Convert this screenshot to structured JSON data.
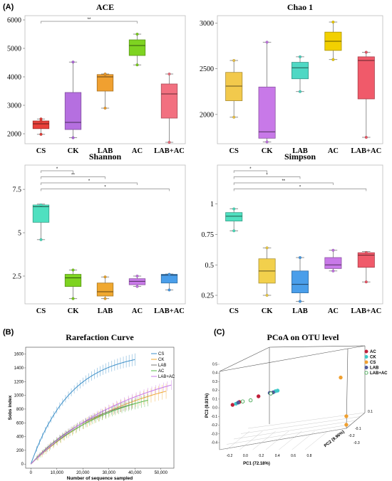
{
  "panel_labels": [
    "(A)",
    "(B)",
    "(C)"
  ],
  "box_categories": [
    "CS",
    "CK",
    "LAB",
    "AC",
    "LAB+AC"
  ],
  "box_colors": [
    "#e8403a",
    "#b56fe0",
    "#f0a030",
    "#7ed321",
    "#f27080"
  ],
  "chart_data": [
    {
      "type": "box",
      "title": "ACE",
      "categories": [
        "CS",
        "CK",
        "LAB",
        "AC",
        "LAB+AC"
      ],
      "colors": [
        "#e8403a",
        "#b56fe0",
        "#f0a030",
        "#7ed321",
        "#f27080"
      ],
      "ylim": [
        1650,
        6150
      ],
      "yticks": [
        2000,
        3000,
        4000,
        5000,
        6000
      ],
      "boxes": [
        {
          "min": 1980,
          "q1": 2180,
          "median": 2350,
          "q3": 2450,
          "max": 2520,
          "points": [
            1980,
            2450,
            2520
          ]
        },
        {
          "min": 1860,
          "q1": 2150,
          "median": 2400,
          "q3": 3450,
          "max": 4520,
          "points": [
            1860,
            4520
          ]
        },
        {
          "min": 2900,
          "q1": 3500,
          "median": 4000,
          "q3": 4080,
          "max": 4100,
          "points": [
            2900,
            4080,
            4100
          ]
        },
        {
          "min": 4420,
          "q1": 4750,
          "median": 5100,
          "q3": 5300,
          "max": 5500,
          "points": [
            4420,
            5500
          ]
        },
        {
          "min": 1700,
          "q1": 2550,
          "median": 3400,
          "q3": 3750,
          "max": 4100,
          "points": [
            1700,
            4100
          ]
        }
      ],
      "significance": [
        {
          "from": 0,
          "to": 3,
          "label": "**"
        }
      ]
    },
    {
      "type": "box",
      "title": "Chao 1",
      "categories": [
        "CS",
        "CK",
        "LAB",
        "AC",
        "LAB+AC"
      ],
      "colors": [
        "#f2c94c",
        "#c879e8",
        "#4fd8c4",
        "#f2d000",
        "#f05a6a"
      ],
      "ylim": [
        1680,
        3080
      ],
      "yticks": [
        2000,
        2500,
        3000
      ],
      "boxes": [
        {
          "min": 1970,
          "q1": 2150,
          "median": 2310,
          "q3": 2460,
          "max": 2590,
          "points": [
            1970,
            2590
          ]
        },
        {
          "min": 1700,
          "q1": 1740,
          "median": 1810,
          "q3": 2300,
          "max": 2790,
          "points": [
            1700,
            2790
          ]
        },
        {
          "min": 2250,
          "q1": 2390,
          "median": 2510,
          "q3": 2570,
          "max": 2630,
          "points": [
            2250,
            2630
          ]
        },
        {
          "min": 2600,
          "q1": 2700,
          "median": 2800,
          "q3": 2900,
          "max": 3010,
          "points": [
            2600,
            3010
          ]
        },
        {
          "min": 1750,
          "q1": 2170,
          "median": 2590,
          "q3": 2630,
          "max": 2680,
          "points": [
            1750,
            2680
          ]
        }
      ],
      "significance": []
    },
    {
      "type": "box",
      "title": "Shannon",
      "categories": [
        "CS",
        "CK",
        "LAB",
        "AC",
        "LAB+AC"
      ],
      "colors": [
        "#4fe0c0",
        "#7ed321",
        "#f0a830",
        "#c879e8",
        "#4a9eea"
      ],
      "ylim": [
        0.9,
        8.9
      ],
      "yticks": [
        2.5,
        5,
        7.5
      ],
      "ytick_labels": [
        "2.5",
        "5",
        "7.5"
      ],
      "boxes": [
        {
          "min": 4.6,
          "q1": 5.6,
          "median": 6.5,
          "q3": 6.6,
          "max": 6.65,
          "points": [
            4.6,
            6.6
          ]
        },
        {
          "min": 1.2,
          "q1": 1.9,
          "median": 2.4,
          "q3": 2.6,
          "max": 2.85,
          "points": [
            1.2,
            2.85
          ]
        },
        {
          "min": 1.2,
          "q1": 1.35,
          "median": 1.6,
          "q3": 2.1,
          "max": 2.45,
          "points": [
            1.2,
            2.45
          ]
        },
        {
          "min": 1.9,
          "q1": 2.0,
          "median": 2.2,
          "q3": 2.35,
          "max": 2.5,
          "points": [
            1.9,
            2.5
          ]
        },
        {
          "min": 1.7,
          "q1": 2.1,
          "median": 2.55,
          "q3": 2.6,
          "max": 2.62,
          "points": [
            1.7,
            2.6
          ]
        }
      ],
      "significance": [
        {
          "from": 0,
          "to": 1,
          "label": "*"
        },
        {
          "from": 0,
          "to": 2,
          "label": "**"
        },
        {
          "from": 0,
          "to": 3,
          "label": "*"
        },
        {
          "from": 0,
          "to": 4,
          "label": "*"
        }
      ]
    },
    {
      "type": "box",
      "title": "Simpson",
      "categories": [
        "CS",
        "CK",
        "LAB",
        "AC",
        "LAB+AC"
      ],
      "colors": [
        "#4fe0c0",
        "#f2d04c",
        "#4a9eea",
        "#c879e8",
        "#f05a6a"
      ],
      "ylim": [
        0.18,
        1.32
      ],
      "yticks": [
        0.25,
        0.5,
        0.75,
        1
      ],
      "ytick_labels": [
        "0.25",
        "0.5",
        "0.75",
        "1"
      ],
      "boxes": [
        {
          "min": 0.78,
          "q1": 0.86,
          "median": 0.9,
          "q3": 0.93,
          "max": 0.96,
          "points": [
            0.78,
            0.96
          ]
        },
        {
          "min": 0.25,
          "q1": 0.35,
          "median": 0.45,
          "q3": 0.55,
          "max": 0.64,
          "points": [
            0.25,
            0.64
          ]
        },
        {
          "min": 0.2,
          "q1": 0.27,
          "median": 0.34,
          "q3": 0.45,
          "max": 0.56,
          "points": [
            0.2,
            0.56
          ]
        },
        {
          "min": 0.45,
          "q1": 0.47,
          "median": 0.5,
          "q3": 0.56,
          "max": 0.62,
          "points": [
            0.45,
            0.62
          ]
        },
        {
          "min": 0.36,
          "q1": 0.48,
          "median": 0.58,
          "q3": 0.6,
          "max": 0.61,
          "points": [
            0.36,
            0.6
          ]
        }
      ],
      "significance": [
        {
          "from": 0,
          "to": 1,
          "label": "*"
        },
        {
          "from": 0,
          "to": 2,
          "label": "*"
        },
        {
          "from": 0,
          "to": 3,
          "label": "**"
        },
        {
          "from": 0,
          "to": 4,
          "label": "*"
        }
      ]
    },
    {
      "type": "line",
      "title": "Rarefaction Curve",
      "xlabel": "Number of sequence sampled",
      "ylabel": "Sobs index",
      "xlim": [
        -2000,
        55000
      ],
      "ylim": [
        -60,
        1700
      ],
      "xticks": [
        0,
        10000,
        20000,
        30000,
        40000,
        50000
      ],
      "xtick_labels": [
        "0",
        "10,000",
        "20,000",
        "30,000",
        "40,000",
        "50,000"
      ],
      "yticks": [
        0,
        200,
        400,
        600,
        800,
        1000,
        1200,
        1400,
        1600
      ],
      "legend": "top-right",
      "series": [
        {
          "name": "CS",
          "color": "#3c8fc8",
          "xmax": 40000,
          "ymax": 1520,
          "k": 2.6,
          "err": 90
        },
        {
          "name": "CK",
          "color": "#f0a830",
          "xmax": 52000,
          "ymax": 1060,
          "k": 1.3,
          "err": 110
        },
        {
          "name": "LAB",
          "color": "#7a7a7a",
          "xmax": 40000,
          "ymax": 880,
          "k": 1.5,
          "err": 70
        },
        {
          "name": "AC",
          "color": "#56b848",
          "xmax": 45000,
          "ymax": 930,
          "k": 1.4,
          "err": 90
        },
        {
          "name": "LAB+AC",
          "color": "#c879e8",
          "xmax": 54000,
          "ymax": 1150,
          "k": 1.3,
          "err": 70
        }
      ]
    },
    {
      "type": "scatter",
      "title": "PCoA on OTU level",
      "xlabel": "PC1 (72.18%)",
      "ylabel": "PC3 (9.91%)",
      "zlabel": "PC2 (9.96%)",
      "xticks": [
        -0.2,
        0,
        0.2,
        0.4,
        0.6,
        0.8
      ],
      "xtick_labels": [
        "-0.2",
        "0.0",
        "0.2",
        "0.4",
        "0.6",
        "0.8"
      ],
      "yticks": [
        -0.4,
        -0.3,
        -0.2,
        -0.1,
        0,
        0.1,
        0.2,
        0.3,
        0.4,
        0.5
      ],
      "ytick_labels": [
        "-0.4",
        "-0.3",
        "-0.2",
        "-0.1",
        "0.0",
        "0.1",
        "0.2",
        "0.3",
        "0.4",
        "0.5"
      ],
      "zticks": [
        -0.3,
        -0.2,
        -0.1,
        0.1
      ],
      "ztick_labels": [
        "-0.3",
        "-0.2",
        "-0.1",
        "0.1"
      ],
      "legend": "top-right",
      "groups": [
        {
          "name": "AC",
          "color": "#c0203a",
          "marker": "filled"
        },
        {
          "name": "CK",
          "color": "#3fc8c8",
          "marker": "filled"
        },
        {
          "name": "CS",
          "color": "#f0a030",
          "marker": "filled"
        },
        {
          "name": "LAB",
          "color": "#505a9a",
          "marker": "filled"
        },
        {
          "name": "LAB+AC",
          "color": "#2a9a3a",
          "marker": "open"
        }
      ],
      "points": [
        {
          "group": "AC",
          "x": -0.11,
          "y": 0.0
        },
        {
          "group": "AC",
          "x": -0.05,
          "y": 0.05
        },
        {
          "group": "AC",
          "x": 0.12,
          "y": 0.15
        },
        {
          "group": "CK",
          "x": 0.27,
          "y": 0.24
        },
        {
          "group": "CK",
          "x": 0.29,
          "y": 0.25
        },
        {
          "group": "CK",
          "x": -0.08,
          "y": 0.02
        },
        {
          "group": "CS",
          "x": 0.85,
          "y": 0.48
        },
        {
          "group": "CS",
          "x": 0.9,
          "y": -0.35
        },
        {
          "group": "CS",
          "x": 0.9,
          "y": -0.2
        },
        {
          "group": "LAB",
          "x": 0.22,
          "y": 0.21
        },
        {
          "group": "LAB",
          "x": -0.06,
          "y": 0.04
        },
        {
          "group": "LAB",
          "x": 0.25,
          "y": 0.22
        },
        {
          "group": "LAB+AC",
          "x": -0.02,
          "y": 0.06
        },
        {
          "group": "LAB+AC",
          "x": 0.05,
          "y": 0.08
        },
        {
          "group": "LAB+AC",
          "x": 0.23,
          "y": 0.2
        }
      ]
    }
  ]
}
